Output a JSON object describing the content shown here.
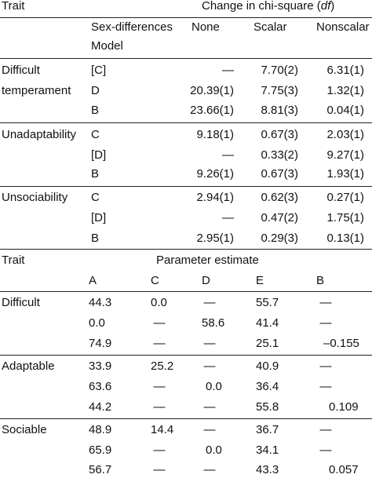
{
  "top_table": {
    "col_trait": "Trait",
    "col_change": "Change in chi-square (",
    "col_change_df": "df",
    "col_change_close": ")",
    "sex_diff_label": "Sex-differences",
    "model_label": "Model",
    "col_none": "None",
    "col_scalar": "Scalar",
    "col_nonscalar": "Nonscalar",
    "groups": [
      {
        "trait_line1": "Difficult",
        "trait_line2": "temperament",
        "rows": [
          {
            "model": "[C]",
            "none": "—",
            "scalar": "7.70(2)",
            "nonscalar": "6.31(1)"
          },
          {
            "model": "D",
            "none": "20.39(1)",
            "scalar": "7.75(3)",
            "nonscalar": "1.32(1)"
          },
          {
            "model": "B",
            "none": "23.66(1)",
            "scalar": "8.81(3)",
            "nonscalar": "0.04(1)"
          }
        ]
      },
      {
        "trait_line1": "Unadaptability",
        "trait_line2": "",
        "rows": [
          {
            "model": "C",
            "none": "9.18(1)",
            "scalar": "0.67(3)",
            "nonscalar": "2.03(1)"
          },
          {
            "model": "[D]",
            "none": "—",
            "scalar": "0.33(2)",
            "nonscalar": "9.27(1)"
          },
          {
            "model": "B",
            "none": "9.26(1)",
            "scalar": "0.67(3)",
            "nonscalar": "1.93(1)"
          }
        ]
      },
      {
        "trait_line1": "Unsociability",
        "trait_line2": "",
        "rows": [
          {
            "model": "C",
            "none": "2.94(1)",
            "scalar": "0.62(3)",
            "nonscalar": "0.27(1)"
          },
          {
            "model": "[D]",
            "none": "—",
            "scalar": "0.47(2)",
            "nonscalar": "1.75(1)"
          },
          {
            "model": "B",
            "none": "2.95(1)",
            "scalar": "0.29(3)",
            "nonscalar": "0.13(1)"
          }
        ]
      }
    ]
  },
  "bottom_table": {
    "col_trait": "Trait",
    "col_param": "Parameter estimate",
    "col_a": "A",
    "col_c": "C",
    "col_d": "D",
    "col_e": "E",
    "col_b": "B",
    "groups": [
      {
        "trait": "Difficult",
        "rows": [
          {
            "a": "44.3",
            "c": "0.0",
            "d": "—",
            "e": "55.7",
            "b": "—"
          },
          {
            "a": "0.0",
            "c": "—",
            "d": "58.6",
            "e": "41.4",
            "b": "—"
          },
          {
            "a": "74.9",
            "c": "—",
            "d": "—",
            "e": "25.1",
            "b": "–0.155"
          }
        ]
      },
      {
        "trait": "Adaptable",
        "rows": [
          {
            "a": "33.9",
            "c": "25.2",
            "d": "—",
            "e": "40.9",
            "b": "—"
          },
          {
            "a": "63.6",
            "c": "—",
            "d": "0.0",
            "e": "36.4",
            "b": "—"
          },
          {
            "a": "44.2",
            "c": "—",
            "d": "—",
            "e": "55.8",
            "b": "0.109"
          }
        ]
      },
      {
        "trait": "Sociable",
        "rows": [
          {
            "a": "48.9",
            "c": "14.4",
            "d": "—",
            "e": "36.7",
            "b": "—"
          },
          {
            "a": "65.9",
            "c": "—",
            "d": "0.0",
            "e": "34.1",
            "b": "—"
          },
          {
            "a": "56.7",
            "c": "—",
            "d": "—",
            "e": "43.3",
            "b": "0.057"
          }
        ]
      }
    ]
  }
}
